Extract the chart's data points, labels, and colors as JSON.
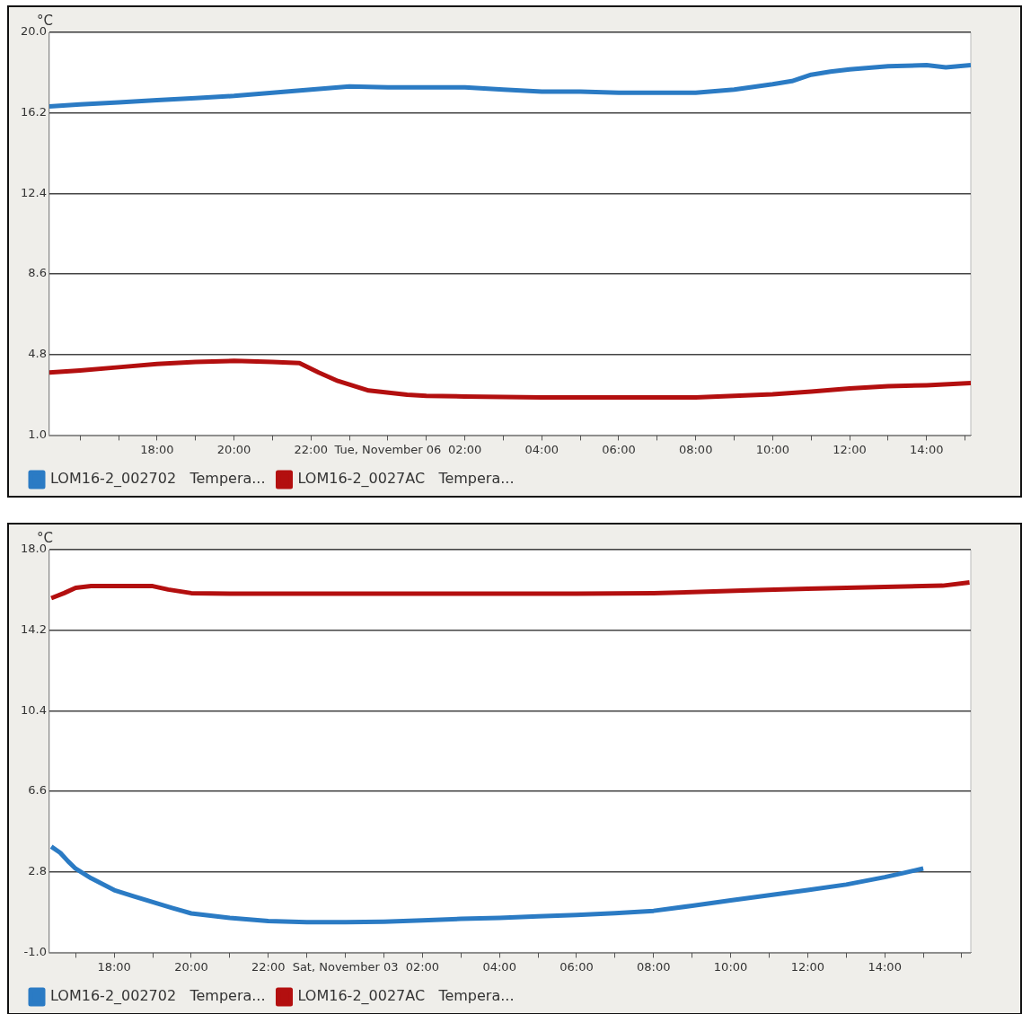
{
  "chart_data": [
    {
      "type": "line",
      "ylabel": "°C",
      "legend": "bottom",
      "grid": "y",
      "marker": "none",
      "line_style": "solid",
      "xlim": [
        "--11-05T15:12",
        "--11-06T15:09"
      ],
      "ylim": [
        1.0,
        20.0
      ],
      "yticks": [
        {
          "value": 1.0,
          "label": "1.0"
        },
        4.8,
        8.6,
        12.4,
        16.2,
        {
          "value": 20.0,
          "label": "20.0"
        }
      ],
      "xticks": [
        {
          "value": "--11-05T16:00",
          "label": null
        },
        {
          "value": "--11-05T17:00",
          "label": null
        },
        {
          "value": "--11-05T18:00",
          "label": "18:00"
        },
        {
          "value": "--11-05T19:00",
          "label": null
        },
        {
          "value": "--11-05T20:00",
          "label": "20:00"
        },
        {
          "value": "--11-05T21:00",
          "label": null
        },
        {
          "value": "--11-05T22:00",
          "label": "22:00"
        },
        {
          "value": "--11-05T23:00",
          "label": null
        },
        {
          "value": "--11-06T00:00",
          "label": "Tue, November 06"
        },
        {
          "value": "--11-06T01:00",
          "label": null
        },
        {
          "value": "--11-06T02:00",
          "label": "02:00"
        },
        {
          "value": "--11-06T03:00",
          "label": null
        },
        {
          "value": "--11-06T04:00",
          "label": "04:00"
        },
        {
          "value": "--11-06T05:00",
          "label": null
        },
        {
          "value": "--11-06T06:00",
          "label": "06:00"
        },
        {
          "value": "--11-06T07:00",
          "label": null
        },
        {
          "value": "--11-06T08:00",
          "label": "08:00"
        },
        {
          "value": "--11-06T09:00",
          "label": null
        },
        {
          "value": "--11-06T10:00",
          "label": "10:00"
        },
        {
          "value": "--11-06T11:00",
          "label": null
        },
        {
          "value": "--11-06T12:00",
          "label": "12:00"
        },
        {
          "value": "--11-06T13:00",
          "label": null
        },
        {
          "value": "--11-06T14:00",
          "label": "14:00"
        },
        {
          "value": "--11-06T15:00",
          "label": null
        }
      ],
      "series": [
        {
          "name": "LOM16-2_002702   Tempera...",
          "color": "#2b7bc4",
          "x": [
            "--11-05T15:12",
            "--11-05T16:00",
            "--11-05T17:00",
            "--11-05T18:00",
            "--11-05T19:00",
            "--11-05T20:00",
            "--11-05T21:00",
            "--11-05T22:00",
            "--11-05T23:00",
            "--11-06T00:00",
            "--11-06T01:00",
            "--11-06T02:00",
            "--11-06T03:00",
            "--11-06T04:00",
            "--11-06T05:00",
            "--11-06T06:00",
            "--11-06T07:00",
            "--11-06T08:00",
            "--11-06T09:00",
            "--11-06T10:00",
            "--11-06T10:30",
            "--11-06T11:00",
            "--11-06T11:30",
            "--11-06T12:00",
            "--11-06T13:00",
            "--11-06T14:00",
            "--11-06T14:30",
            "--11-06T15:09"
          ],
          "values": [
            16.5,
            16.6,
            16.7,
            16.8,
            16.9,
            17.0,
            17.15,
            17.3,
            17.45,
            17.4,
            17.4,
            17.4,
            17.3,
            17.2,
            17.2,
            17.15,
            17.15,
            17.15,
            17.3,
            17.55,
            17.7,
            18.0,
            18.15,
            18.25,
            18.4,
            18.45,
            18.35,
            18.45
          ]
        },
        {
          "name": "LOM16-2_0027AC   Tempera...",
          "color": "#b30f0f",
          "x": [
            "--11-05T15:12",
            "--11-05T16:00",
            "--11-05T17:00",
            "--11-05T18:00",
            "--11-05T19:00",
            "--11-05T20:00",
            "--11-05T21:00",
            "--11-05T21:42",
            "--11-05T22:12",
            "--11-05T22:42",
            "--11-05T23:30",
            "--11-06T00:30",
            "--11-06T01:00",
            "--11-06T02:00",
            "--11-06T04:00",
            "--11-06T06:00",
            "--11-06T08:00",
            "--11-06T09:00",
            "--11-06T10:00",
            "--11-06T11:00",
            "--11-06T12:00",
            "--11-06T13:00",
            "--11-06T14:00",
            "--11-06T15:09"
          ],
          "values": [
            3.95,
            4.05,
            4.2,
            4.35,
            4.45,
            4.5,
            4.45,
            4.4,
            3.95,
            3.55,
            3.1,
            2.9,
            2.85,
            2.82,
            2.78,
            2.78,
            2.78,
            2.85,
            2.92,
            3.05,
            3.2,
            3.3,
            3.35,
            3.45
          ]
        }
      ]
    },
    {
      "type": "line",
      "ylabel": "°C",
      "legend": "bottom",
      "grid": "y",
      "marker": "none",
      "line_style": "solid",
      "xlim": [
        "--11-02T16:19",
        "--11-03T16:14"
      ],
      "ylim": [
        -1.0,
        18.0
      ],
      "yticks": [
        {
          "value": -1.0,
          "label": "-1.0"
        },
        2.8,
        6.6,
        10.4,
        14.2,
        {
          "value": 18.0,
          "label": "18.0"
        }
      ],
      "xticks": [
        {
          "value": "--11-02T17:00",
          "label": null
        },
        {
          "value": "--11-02T18:00",
          "label": "18:00"
        },
        {
          "value": "--11-02T19:00",
          "label": null
        },
        {
          "value": "--11-02T20:00",
          "label": "20:00"
        },
        {
          "value": "--11-02T21:00",
          "label": null
        },
        {
          "value": "--11-02T22:00",
          "label": "22:00"
        },
        {
          "value": "--11-02T23:00",
          "label": null
        },
        {
          "value": "--11-03T00:00",
          "label": "Sat, November 03"
        },
        {
          "value": "--11-03T01:00",
          "label": null
        },
        {
          "value": "--11-03T02:00",
          "label": "02:00"
        },
        {
          "value": "--11-03T03:00",
          "label": null
        },
        {
          "value": "--11-03T04:00",
          "label": "04:00"
        },
        {
          "value": "--11-03T05:00",
          "label": null
        },
        {
          "value": "--11-03T06:00",
          "label": "06:00"
        },
        {
          "value": "--11-03T07:00",
          "label": null
        },
        {
          "value": "--11-03T08:00",
          "label": "08:00"
        },
        {
          "value": "--11-03T09:00",
          "label": null
        },
        {
          "value": "--11-03T10:00",
          "label": "10:00"
        },
        {
          "value": "--11-03T11:00",
          "label": null
        },
        {
          "value": "--11-03T12:00",
          "label": "12:00"
        },
        {
          "value": "--11-03T13:00",
          "label": null
        },
        {
          "value": "--11-03T14:00",
          "label": "14:00"
        },
        {
          "value": "--11-03T15:00",
          "label": null
        },
        {
          "value": "--11-03T16:00",
          "label": null
        }
      ],
      "series": [
        {
          "name": "LOM16-2_002702   Tempera...",
          "color": "#2b7bc4",
          "x": [
            "--11-02T16:22",
            "--11-02T16:36",
            "--11-02T16:48",
            "--11-02T17:00",
            "--11-02T17:24",
            "--11-02T18:00",
            "--11-02T18:30",
            "--11-02T19:00",
            "--11-02T19:30",
            "--11-02T20:00",
            "--11-02T21:00",
            "--11-02T22:00",
            "--11-02T23:00",
            "--11-03T00:00",
            "--11-03T01:00",
            "--11-03T02:00",
            "--11-03T03:00",
            "--11-03T04:00",
            "--11-03T05:00",
            "--11-03T06:00",
            "--11-03T07:00",
            "--11-03T08:00",
            "--11-03T09:00",
            "--11-03T10:00",
            "--11-03T11:00",
            "--11-03T12:00",
            "--11-03T13:00",
            "--11-03T14:00",
            "--11-03T14:30",
            "--11-03T15:00"
          ],
          "values": [
            3.99,
            3.7,
            3.3,
            2.95,
            2.5,
            1.94,
            1.65,
            1.37,
            1.1,
            0.84,
            0.63,
            0.48,
            0.43,
            0.43,
            0.45,
            0.51,
            0.58,
            0.63,
            0.7,
            0.76,
            0.85,
            0.96,
            1.2,
            1.45,
            1.7,
            1.94,
            2.2,
            2.55,
            2.75,
            2.96
          ]
        },
        {
          "name": "LOM16-2_0027AC   Tempera...",
          "color": "#b30f0f",
          "x": [
            "--11-02T16:22",
            "--11-02T16:42",
            "--11-02T17:00",
            "--11-02T17:24",
            "--11-02T18:00",
            "--11-02T19:00",
            "--11-02T19:24",
            "--11-02T20:00",
            "--11-02T21:00",
            "--11-02T23:00",
            "--11-03T00:00",
            "--11-03T02:00",
            "--11-03T04:00",
            "--11-03T06:00",
            "--11-03T08:00",
            "--11-03T09:00",
            "--11-03T10:30",
            "--11-03T12:00",
            "--11-03T14:00",
            "--11-03T15:30",
            "--11-03T16:12"
          ],
          "values": [
            15.71,
            15.95,
            16.2,
            16.28,
            16.28,
            16.28,
            16.12,
            15.95,
            15.92,
            15.92,
            15.92,
            15.92,
            15.92,
            15.92,
            15.95,
            16.0,
            16.08,
            16.16,
            16.24,
            16.3,
            16.45
          ]
        }
      ]
    }
  ]
}
